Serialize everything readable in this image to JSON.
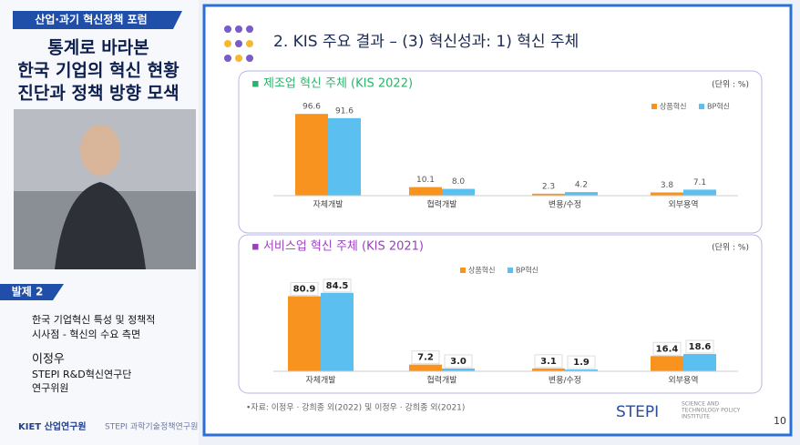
{
  "left_panel": {
    "forum_tag": "산업·과기 혁신정책 포럼",
    "title_lines": [
      "통계로 바라본",
      "한국 기업의 혁신 현황",
      "진단과 정책 방향 모색"
    ],
    "session_tag": "발제 2",
    "topic_lines": [
      "한국 기업혁신 특성 및 정책적",
      "시사점 - 혁신의 수요 측면"
    ],
    "speaker": "이정우",
    "affiliation": "STEPI R&D혁신연구단",
    "position": "연구위원",
    "logos": [
      "KIET 산업연구원",
      "STEPI 과학기술정책연구원"
    ]
  },
  "slide": {
    "title": "2. KIS 주요 결과 – (3) 혁신성과: 1) 혁신 주체",
    "source": "•자료: 이정우 · 강희종 외(2022) 및 이정우 · 강희종 외(2021)",
    "logo": "STEPI",
    "logo_text": [
      "SCIENCE AND",
      "TECHNOLOGY POLICY",
      "INSTITUTE"
    ],
    "page": "10"
  },
  "chart_data": [
    {
      "type": "bar",
      "title": "▪ 제조업 혁신 주체 (KIS 2022)",
      "unit": "(단위 : %)",
      "categories": [
        "자체개발",
        "협력개발",
        "변용/수정",
        "외부용역"
      ],
      "series": [
        {
          "name": "상품혁신",
          "color": "#f7931e",
          "values": [
            96.6,
            10.1,
            2.3,
            3.8
          ],
          "value_labels": [
            "96.6",
            "10.1",
            "2.3",
            "3.8"
          ]
        },
        {
          "name": "BP혁신",
          "color": "#5bc0f0",
          "values": [
            91.6,
            8.0,
            4.2,
            7.1
          ],
          "value_labels": [
            "91.6",
            "8.0",
            "4.2",
            "7.1"
          ]
        }
      ]
    },
    {
      "type": "bar",
      "title": "▪ 서비스업 혁신 주체 (KIS 2021)",
      "unit": "(단위 : %)",
      "categories": [
        "자체개발",
        "협력개발",
        "변용/수정",
        "외부용역"
      ],
      "series": [
        {
          "name": "상품혁신",
          "color": "#f7931e",
          "values": [
            80.9,
            7.2,
            3.1,
            16.4
          ],
          "value_labels": [
            "80.9",
            "7.2",
            "3.1",
            "16.4"
          ]
        },
        {
          "name": "BP혁신",
          "color": "#5bc0f0",
          "values": [
            84.5,
            3.0,
            1.9,
            18.6
          ],
          "value_labels": [
            "84.5",
            "3.0",
            "1.9",
            "18.6"
          ]
        }
      ]
    }
  ]
}
